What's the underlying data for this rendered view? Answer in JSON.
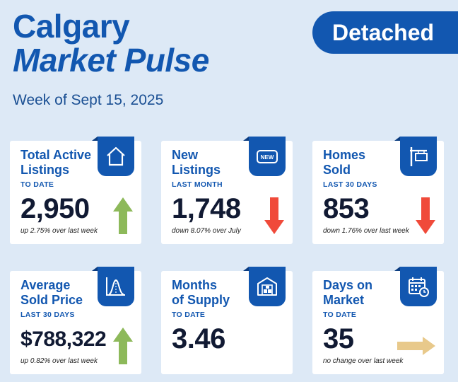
{
  "header": {
    "title_line1": "Calgary",
    "title_line2": "Market Pulse",
    "subtitle": "Week of Sept 15, 2025",
    "badge": "Detached"
  },
  "colors": {
    "brand_blue": "#1257b0",
    "up_green": "#8db95a",
    "down_red": "#f04a3a",
    "flat_tan": "#e8c98b",
    "background": "#dde9f6"
  },
  "cards": [
    {
      "line1": "Total Active",
      "line2": "Listings",
      "period": "TO DATE",
      "value": "2,950",
      "note": "up 2.75% over last week",
      "icon": "house-icon",
      "trend": "up"
    },
    {
      "line1": "New",
      "line2": "Listings",
      "period": "LAST MONTH",
      "value": "1,748",
      "note": "down 8.07% over July",
      "icon": "new-badge-icon",
      "icon_text": "NEW",
      "trend": "down"
    },
    {
      "line1": "Homes",
      "line2": "Sold",
      "period": "LAST 30 DAYS",
      "value": "853",
      "note": "down 1.76% over last week",
      "icon": "sign-post-icon",
      "trend": "down"
    },
    {
      "line1": "Average",
      "line2": "Sold Price",
      "period": "LAST 30 DAYS",
      "value": "$788,322",
      "note": "up 0.82% over last week",
      "icon": "bell-curve-icon",
      "trend": "up"
    },
    {
      "line1": "Months",
      "line2": "of Supply",
      "period": "TO DATE",
      "value": "3.46",
      "note": "",
      "icon": "warehouse-icon",
      "trend": "none"
    },
    {
      "line1": "Days on",
      "line2": "Market",
      "period": "TO DATE",
      "value": "35",
      "note": "no change over last week",
      "icon": "calendar-clock-icon",
      "trend": "flat"
    }
  ]
}
